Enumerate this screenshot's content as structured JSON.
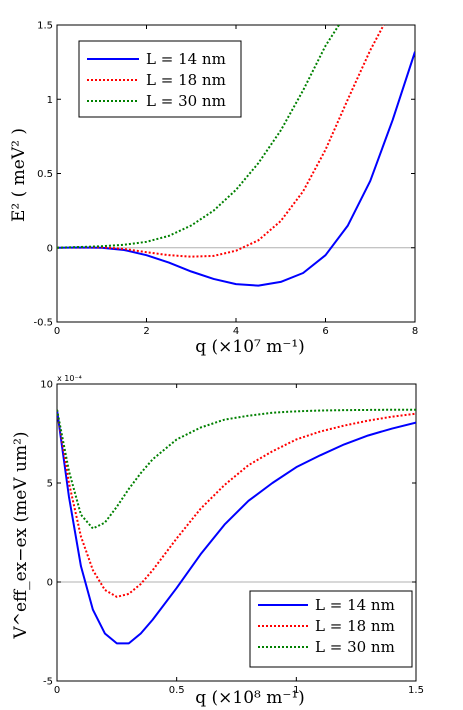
{
  "chart_data": [
    {
      "type": "line",
      "xlabel": "q (×10⁷ m⁻¹)",
      "ylabel": "E² ( meV² )",
      "xlim": [
        0,
        8
      ],
      "ylim": [
        -0.5,
        1.5
      ],
      "xticks": [
        "0",
        "2",
        "4",
        "6",
        "8"
      ],
      "yticks": [
        "-0.5",
        "0",
        "0.5",
        "1",
        "1.5"
      ],
      "zero_line": true,
      "legend_position": "top-left",
      "series": [
        {
          "name": "L = 14 nm",
          "color": "#0000ff",
          "style": "solid",
          "x": [
            0,
            0.5,
            1,
            1.5,
            2,
            2.5,
            3,
            3.5,
            4,
            4.5,
            5,
            5.5,
            6,
            6.5,
            7,
            7.5,
            8
          ],
          "y": [
            0,
            0.002,
            0.0,
            -0.015,
            -0.05,
            -0.1,
            -0.16,
            -0.21,
            -0.245,
            -0.255,
            -0.23,
            -0.17,
            -0.05,
            0.15,
            0.45,
            0.86,
            1.32
          ]
        },
        {
          "name": "L = 18 nm",
          "color": "#ff0000",
          "style": "dotted",
          "x": [
            0,
            0.5,
            1,
            1.5,
            2,
            2.5,
            3,
            3.5,
            4,
            4.5,
            5,
            5.5,
            6,
            6.5,
            7,
            7.3
          ],
          "y": [
            0,
            0.003,
            0.003,
            -0.008,
            -0.03,
            -0.05,
            -0.06,
            -0.055,
            -0.02,
            0.05,
            0.18,
            0.38,
            0.66,
            1.0,
            1.33,
            1.5
          ]
        },
        {
          "name": "L = 30 nm",
          "color": "#008000",
          "style": "dotted",
          "x": [
            0,
            0.5,
            1,
            1.5,
            2,
            2.5,
            3,
            3.5,
            4,
            4.5,
            5,
            5.5,
            6,
            6.3
          ],
          "y": [
            0,
            0.005,
            0.01,
            0.02,
            0.04,
            0.08,
            0.15,
            0.25,
            0.39,
            0.57,
            0.79,
            1.06,
            1.36,
            1.5
          ]
        }
      ]
    },
    {
      "type": "line",
      "xlabel": "q (×10⁸ m⁻¹)",
      "ylabel": "V^eff_ex−ex (meV um²)",
      "y_multiplier": "x 10⁻⁴",
      "xlim": [
        0,
        1.5
      ],
      "ylim": [
        -5,
        10
      ],
      "xticks": [
        "0",
        "0.5",
        "1",
        "1.5"
      ],
      "yticks": [
        "-5",
        "0",
        "5",
        "10"
      ],
      "zero_line": true,
      "legend_position": "bottom-right",
      "series": [
        {
          "name": "L = 14 nm",
          "color": "#0000ff",
          "style": "solid",
          "x": [
            0,
            0.05,
            0.1,
            0.15,
            0.2,
            0.25,
            0.3,
            0.35,
            0.4,
            0.5,
            0.6,
            0.7,
            0.8,
            0.9,
            1.0,
            1.1,
            1.2,
            1.3,
            1.4,
            1.5
          ],
          "y": [
            8.7,
            4.3,
            0.8,
            -1.4,
            -2.6,
            -3.1,
            -3.1,
            -2.6,
            -1.9,
            -0.3,
            1.4,
            2.9,
            4.1,
            5.0,
            5.8,
            6.4,
            6.95,
            7.4,
            7.75,
            8.05
          ]
        },
        {
          "name": "L = 18 nm",
          "color": "#ff0000",
          "style": "dotted",
          "x": [
            0,
            0.05,
            0.1,
            0.15,
            0.2,
            0.25,
            0.3,
            0.35,
            0.4,
            0.5,
            0.6,
            0.7,
            0.8,
            0.9,
            1.0,
            1.1,
            1.2,
            1.3,
            1.4,
            1.5
          ],
          "y": [
            8.7,
            5.0,
            2.3,
            0.6,
            -0.4,
            -0.75,
            -0.6,
            -0.1,
            0.6,
            2.2,
            3.7,
            4.9,
            5.9,
            6.6,
            7.2,
            7.6,
            7.9,
            8.15,
            8.35,
            8.5
          ]
        },
        {
          "name": "L = 30 nm",
          "color": "#008000",
          "style": "dotted",
          "x": [
            0,
            0.05,
            0.1,
            0.15,
            0.2,
            0.25,
            0.3,
            0.35,
            0.4,
            0.5,
            0.6,
            0.7,
            0.8,
            0.9,
            1.0,
            1.1,
            1.2,
            1.3,
            1.4,
            1.5
          ],
          "y": [
            8.7,
            5.6,
            3.4,
            2.7,
            3.0,
            3.8,
            4.7,
            5.5,
            6.2,
            7.2,
            7.8,
            8.2,
            8.4,
            8.55,
            8.62,
            8.66,
            8.68,
            8.69,
            8.7,
            8.7
          ]
        }
      ]
    }
  ]
}
